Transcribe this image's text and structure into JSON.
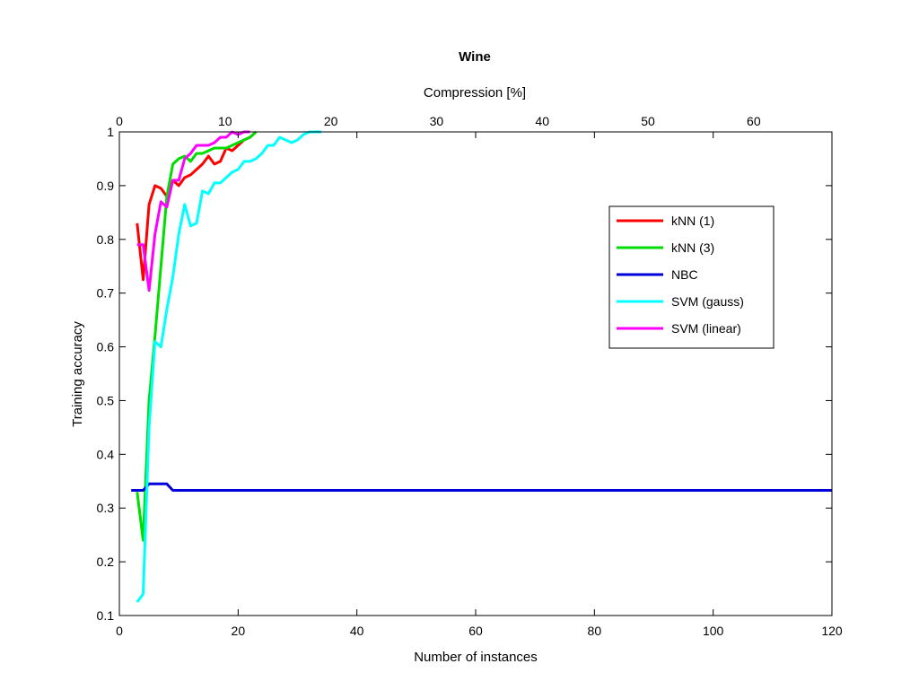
{
  "chart_data": {
    "type": "line",
    "title": "Wine",
    "xlabel": "Number of instances",
    "ylabel": "Training accuracy",
    "x2label": "Compression [%]",
    "xlim": [
      0,
      120
    ],
    "ylim": [
      0.1,
      1
    ],
    "x2lim": [
      0,
      67.4
    ],
    "xticks": [
      0,
      20,
      40,
      60,
      80,
      100,
      120
    ],
    "yticks": [
      0.1,
      0.2,
      0.3,
      0.4,
      0.5,
      0.6,
      0.7,
      0.8,
      0.9,
      1
    ],
    "x2ticks": [
      0,
      10,
      20,
      30,
      40,
      50,
      60
    ],
    "grid": false,
    "legend_position": "right",
    "series": [
      {
        "name": "kNN (1)",
        "color": "#ff0000",
        "x": [
          3,
          4,
          5,
          6,
          7,
          8,
          9,
          10,
          11,
          12,
          13,
          14,
          15,
          16,
          17,
          18,
          19,
          20,
          21,
          22,
          23
        ],
        "y": [
          0.83,
          0.725,
          0.865,
          0.9,
          0.895,
          0.88,
          0.91,
          0.9,
          0.915,
          0.92,
          0.93,
          0.94,
          0.955,
          0.94,
          0.945,
          0.97,
          0.965,
          0.975,
          0.985,
          0.99,
          1.0
        ]
      },
      {
        "name": "kNN (3)",
        "color": "#00dd00",
        "x": [
          3,
          4,
          5,
          6,
          7,
          8,
          9,
          10,
          11,
          12,
          13,
          14,
          15,
          16,
          17,
          18,
          19,
          20,
          21,
          22,
          23
        ],
        "y": [
          0.33,
          0.24,
          0.5,
          0.62,
          0.75,
          0.88,
          0.94,
          0.95,
          0.955,
          0.945,
          0.96,
          0.96,
          0.965,
          0.97,
          0.97,
          0.97,
          0.975,
          0.98,
          0.985,
          0.99,
          1.0
        ]
      },
      {
        "name": "NBC",
        "color": "#0000dd",
        "x": [
          2,
          4,
          5,
          6,
          7,
          8,
          9,
          10,
          120
        ],
        "y": [
          0.333,
          0.333,
          0.345,
          0.345,
          0.345,
          0.345,
          0.333,
          0.333,
          0.333
        ]
      },
      {
        "name": "SVM (gauss)",
        "color": "#00ffff",
        "x": [
          3,
          4,
          5,
          6,
          7,
          8,
          9,
          10,
          11,
          12,
          13,
          14,
          15,
          16,
          17,
          18,
          19,
          20,
          21,
          22,
          23,
          24,
          25,
          26,
          27,
          28,
          29,
          30,
          31,
          32,
          33,
          34
        ],
        "y": [
          0.125,
          0.14,
          0.45,
          0.61,
          0.6,
          0.67,
          0.73,
          0.81,
          0.865,
          0.825,
          0.83,
          0.89,
          0.885,
          0.905,
          0.905,
          0.915,
          0.925,
          0.93,
          0.945,
          0.945,
          0.95,
          0.96,
          0.975,
          0.975,
          0.99,
          0.985,
          0.98,
          0.985,
          0.995,
          1.0,
          1.0,
          1.0
        ]
      },
      {
        "name": "SVM (linear)",
        "color": "#ff00ff",
        "x": [
          3,
          4,
          5,
          6,
          7,
          8,
          9,
          10,
          11,
          12,
          13,
          14,
          15,
          16,
          17,
          18,
          19,
          20,
          21,
          22
        ],
        "y": [
          0.79,
          0.79,
          0.705,
          0.81,
          0.87,
          0.86,
          0.91,
          0.91,
          0.95,
          0.96,
          0.975,
          0.975,
          0.975,
          0.98,
          0.99,
          0.99,
          1.0,
          0.995,
          1.0,
          1.0
        ]
      }
    ]
  }
}
